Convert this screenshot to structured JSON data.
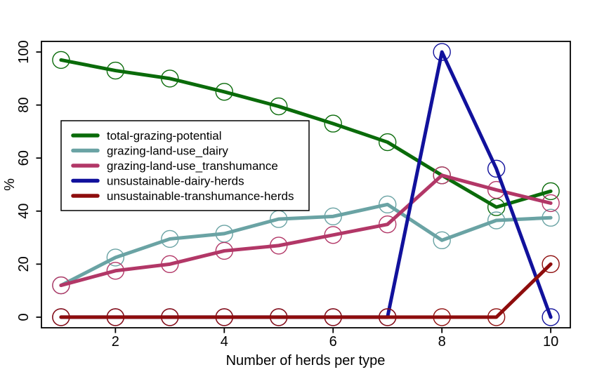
{
  "chart_data": {
    "type": "line",
    "title": "",
    "xlabel": "Number of herds per type",
    "ylabel": "%",
    "x": [
      1,
      2,
      3,
      4,
      5,
      6,
      7,
      8,
      9,
      10
    ],
    "series": [
      {
        "name": "total-grazing-potential",
        "color": "#0a6b0a",
        "values": [
          97,
          93,
          90,
          85,
          79.5,
          73,
          66,
          53.5,
          41.5,
          47.5
        ]
      },
      {
        "name": "grazing-land-use_dairy",
        "color": "#6aa3a4",
        "values": [
          12,
          22.5,
          29.5,
          31.5,
          37,
          38,
          42.5,
          29,
          36.5,
          37.5
        ]
      },
      {
        "name": "grazing-land-use_transhumance",
        "color": "#b23767",
        "values": [
          12,
          17.5,
          20,
          25,
          27,
          31,
          35,
          53.5,
          48,
          43
        ]
      },
      {
        "name": "unsustainable-dairy-herds",
        "color": "#11119c",
        "values": [
          0,
          0,
          0,
          0,
          0,
          0,
          0,
          100,
          56,
          0
        ]
      },
      {
        "name": "unsustainable-transhumance-herds",
        "color": "#8e0d0d",
        "values": [
          0,
          0,
          0,
          0,
          0,
          0,
          0,
          0,
          0,
          20
        ]
      }
    ],
    "xticks": [
      2,
      4,
      6,
      8,
      10
    ],
    "yticks": [
      0,
      20,
      40,
      60,
      80,
      100
    ],
    "xlim": [
      1,
      10
    ],
    "ylim": [
      0,
      100
    ],
    "range_pad": 0.04,
    "grid": false,
    "legend_position": "upper-left-inside",
    "marker": "open-circle",
    "axis_color": "#000000",
    "background": "#ffffff"
  }
}
